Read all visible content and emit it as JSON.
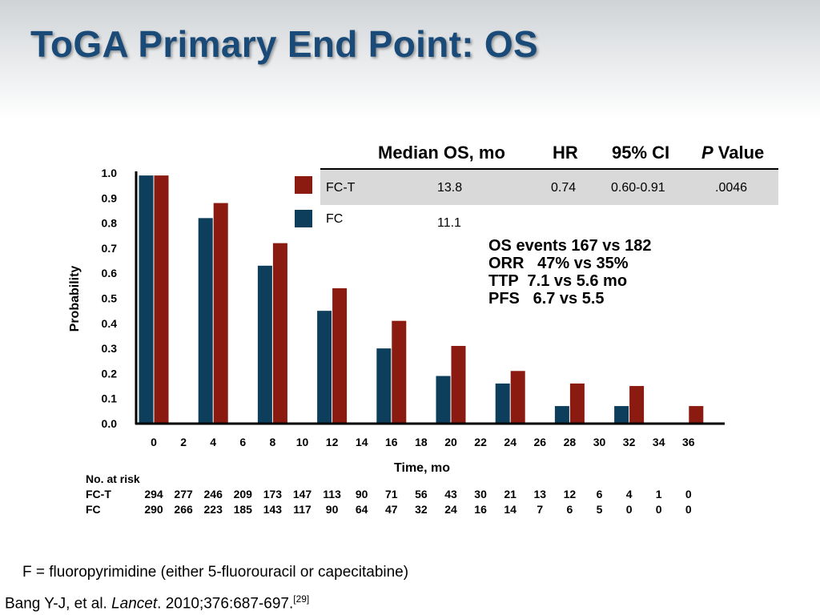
{
  "title": "ToGA Primary End Point: OS",
  "table": {
    "headers": [
      "Median OS, mo",
      "HR",
      "95% CI"
    ],
    "pvalue_italic": "P",
    "pvalue_rest": " Value",
    "rows": [
      {
        "label": "FC-T",
        "median": "13.8",
        "hr": "0.74",
        "ci": "0.60-0.91",
        "p": ".0046",
        "color": "#8b1a10"
      },
      {
        "label": "FC",
        "median": "11.1",
        "hr": "",
        "ci": "",
        "p": "",
        "color": "#0d3f5c"
      }
    ]
  },
  "stats": [
    "OS events 167 vs 182",
    "ORR   47% vs 35%",
    "TTP  7.1 vs 5.6 mo",
    "PFS   6.7 vs 5.5"
  ],
  "chart_data": {
    "type": "bar",
    "ylabel": "Probability",
    "xlabel": "Time, mo",
    "ylim": [
      0,
      1.0
    ],
    "yticks": [
      "0.0",
      "0.1",
      "0.2",
      "0.3",
      "0.4",
      "0.5",
      "0.6",
      "0.7",
      "0.8",
      "0.9",
      "1.0"
    ],
    "x_ticks": [
      0,
      2,
      4,
      6,
      8,
      10,
      12,
      14,
      16,
      18,
      20,
      22,
      24,
      26,
      28,
      30,
      32,
      34,
      36
    ],
    "series": [
      {
        "name": "FC",
        "color": "#0d3f5c",
        "points": [
          [
            0,
            0.99
          ],
          [
            4,
            0.82
          ],
          [
            8,
            0.63
          ],
          [
            12,
            0.45
          ],
          [
            16,
            0.3
          ],
          [
            20,
            0.19
          ],
          [
            24,
            0.16
          ],
          [
            28,
            0.07
          ],
          [
            32,
            0.07
          ]
        ]
      },
      {
        "name": "FC-T",
        "color": "#8b1a10",
        "points": [
          [
            0,
            0.99
          ],
          [
            4,
            0.88
          ],
          [
            8,
            0.72
          ],
          [
            12,
            0.54
          ],
          [
            16,
            0.41
          ],
          [
            20,
            0.31
          ],
          [
            24,
            0.21
          ],
          [
            28,
            0.16
          ],
          [
            32,
            0.15
          ],
          [
            36,
            0.07
          ]
        ]
      }
    ]
  },
  "risk_table": {
    "title": "No. at risk",
    "rows": [
      {
        "label": "FC-T",
        "values": [
          "294",
          "277",
          "246",
          "209",
          "173",
          "147",
          "113",
          "90",
          "71",
          "56",
          "43",
          "30",
          "21",
          "13",
          "12",
          "6",
          "4",
          "1",
          "0"
        ]
      },
      {
        "label": "FC",
        "values": [
          "290",
          "266",
          "223",
          "185",
          "143",
          "117",
          "90",
          "64",
          "47",
          "32",
          "24",
          "16",
          "14",
          "7",
          "6",
          "5",
          "0",
          "0",
          "0"
        ]
      }
    ]
  },
  "footnote": "F = fluoropyrimidine (either 5-fluorouracil or capecitabine)",
  "citation": {
    "before": "Bang Y-J, et al. ",
    "journal": "Lancet",
    "after": ". 2010;376:687-697.",
    "ref": "[29]"
  }
}
